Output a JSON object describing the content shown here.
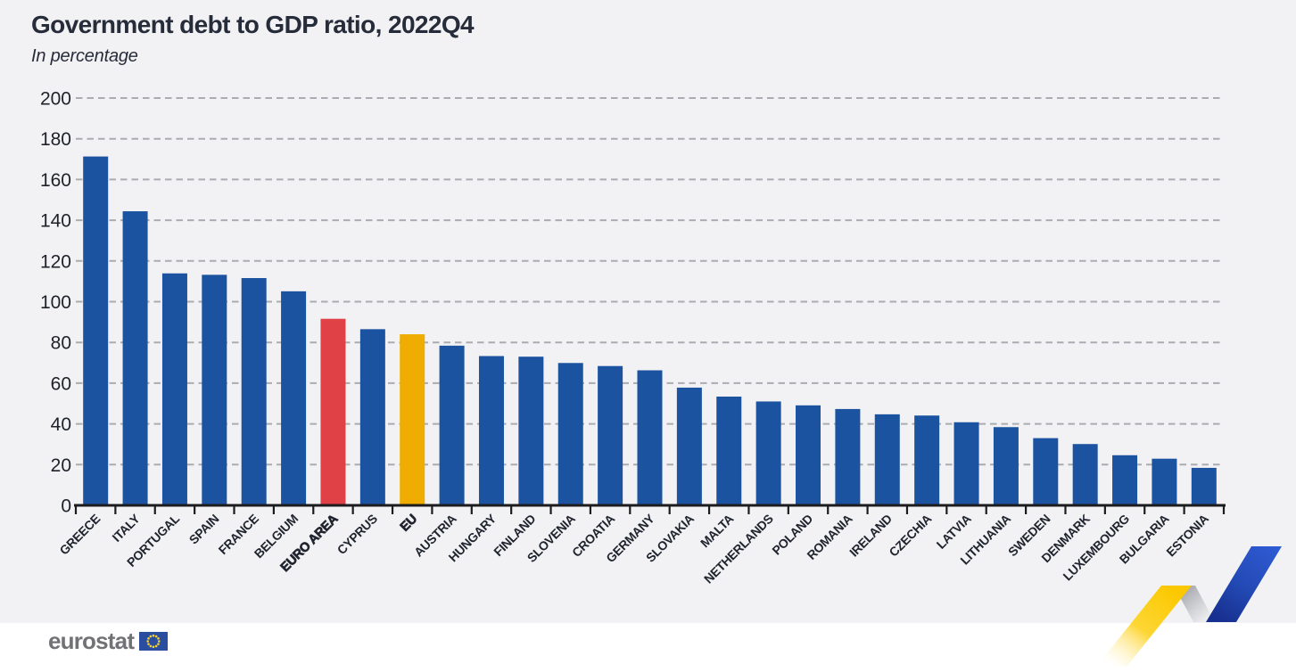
{
  "header": {
    "title": "Government debt to GDP ratio, 2022Q4",
    "subtitle": "In percentage"
  },
  "footer": {
    "logo_text": "eurostat"
  },
  "chart_data": {
    "type": "bar",
    "title": "Government debt to GDP ratio, 2022Q4",
    "subtitle": "In percentage",
    "ylabel": "In percentage",
    "categories": [
      "GREECE",
      "ITALY",
      "PORTUGAL",
      "SPAIN",
      "FRANCE",
      "BELGIUM",
      "EURO AREA",
      "CYPRUS",
      "EU",
      "AUSTRIA",
      "HUNGARY",
      "FINLAND",
      "SLOVENIA",
      "CROATIA",
      "GERMANY",
      "SLOVAKIA",
      "MALTA",
      "NETHERLANDS",
      "POLAND",
      "ROMANIA",
      "IRELAND",
      "CZECHIA",
      "LATVIA",
      "LITHUANIA",
      "SWEDEN",
      "DENMARK",
      "LUXEMBOURG",
      "BULGARIA",
      "ESTONIA"
    ],
    "values": [
      171.3,
      144.4,
      113.9,
      113.2,
      111.6,
      105.1,
      91.6,
      86.5,
      84.0,
      78.4,
      73.3,
      73.0,
      69.9,
      68.4,
      66.3,
      57.8,
      53.4,
      51.0,
      49.1,
      47.3,
      44.7,
      44.1,
      40.8,
      38.4,
      33.0,
      30.1,
      24.6,
      22.9,
      18.4
    ],
    "emphasized": [
      "EURO AREA",
      "EU"
    ],
    "palette": {
      "default": "#1c53a0",
      "EURO AREA": "#e04146",
      "EU": "#eead00"
    },
    "ylim": [
      0,
      200
    ],
    "yticks": [
      0,
      20,
      40,
      60,
      80,
      100,
      120,
      140,
      160,
      180,
      200
    ],
    "grid": "horizontal-dashed",
    "legend": "none",
    "xtick_rotation": -45
  }
}
